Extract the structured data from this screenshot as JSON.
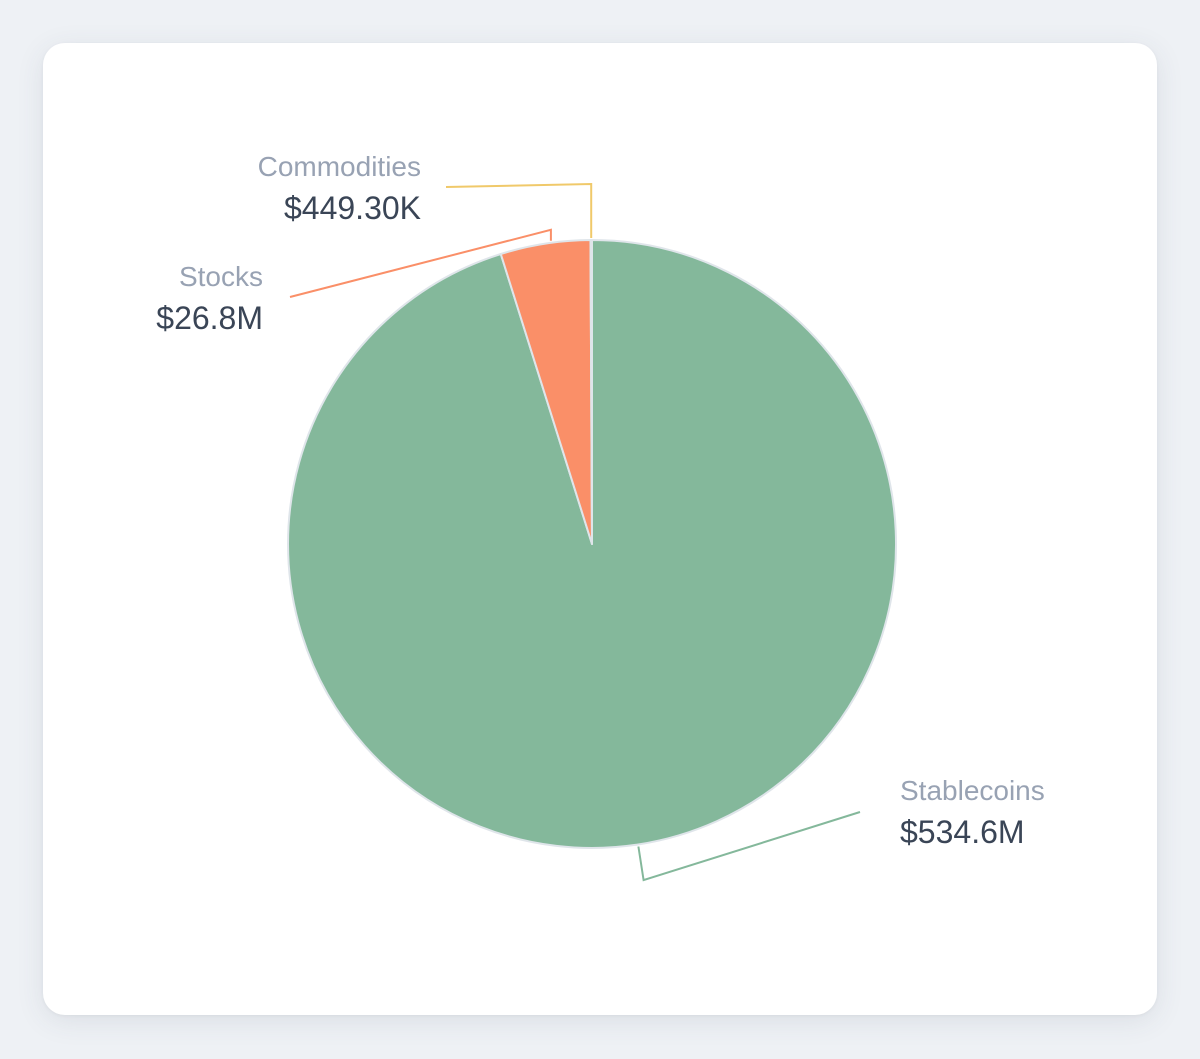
{
  "chart_data": {
    "type": "pie",
    "start_angle": "12 o'clock, clockwise",
    "slices": [
      {
        "name": "Stablecoins",
        "value": 534.6,
        "value_label": "$534.6M",
        "color": "#84b89b"
      },
      {
        "name": "Stocks",
        "value": 26.8,
        "value_label": "$26.8M",
        "color": "#fa8f68"
      },
      {
        "name": "Commodities",
        "value": 0.4493,
        "value_label": "$449.30K",
        "color": "#f0c96a"
      }
    ],
    "slice_border_color": "#dfe5ea"
  }
}
